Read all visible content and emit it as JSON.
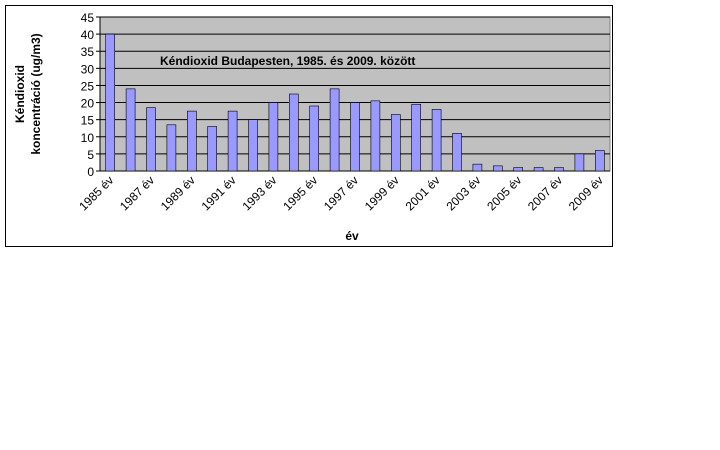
{
  "chart_data": {
    "type": "bar",
    "title": "Kéndioxid Budapesten, 1985. és 2009. között",
    "xlabel": "év",
    "ylabel": [
      "Kéndioxid",
      "koncentráció (ug/m3)"
    ],
    "categories": [
      "1985 év",
      null,
      "1987 év",
      null,
      "1989 év",
      null,
      "1991 év",
      null,
      "1993 év",
      null,
      "1995 év",
      null,
      "1997 év",
      null,
      "1999 év",
      null,
      "2001 év",
      null,
      "2003 év",
      null,
      "2005 év",
      null,
      "2007 év",
      null,
      "2009 év"
    ],
    "values": [
      40,
      24,
      18.5,
      13.5,
      17.5,
      13,
      17.5,
      15,
      20,
      22.5,
      19,
      24,
      20,
      20.5,
      16.5,
      19.5,
      18,
      11,
      2,
      1.5,
      1,
      1,
      1,
      5,
      6
    ],
    "color": "#9999ff",
    "ylim": [
      0,
      45
    ],
    "yticks": [
      0,
      5,
      10,
      15,
      20,
      25,
      30,
      35,
      40,
      45
    ],
    "grid": true
  }
}
